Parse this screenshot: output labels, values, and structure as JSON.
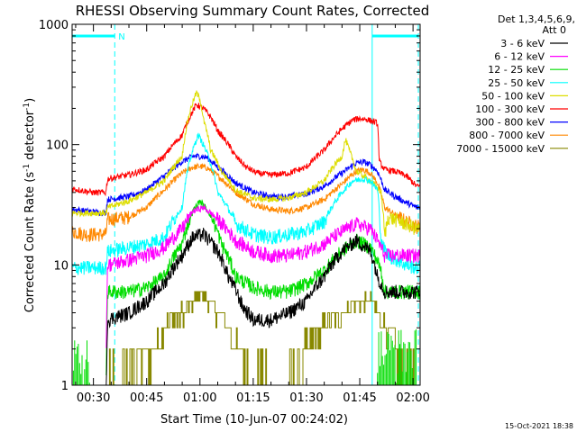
{
  "chart_data": {
    "type": "line",
    "title": "RHESSI Observing Summary Count Rates, Corrected",
    "xlabel": "Start Time (10-Jun-07 00:24:02)",
    "ylabel": "Corrected Count Rate (s⁻¹ detector⁻¹)",
    "ylabel_parts": [
      "Corrected Count Rate (s",
      "-1",
      " detector",
      "-1",
      ")"
    ],
    "y_scale": "log",
    "ylim": [
      1,
      1000
    ],
    "xlim": [
      24.0,
      122.0
    ],
    "x_units": "minutes after 00:00 UT",
    "x_ticks": [
      {
        "value": 30,
        "label": "00:30"
      },
      {
        "value": 45,
        "label": "00:45"
      },
      {
        "value": 60,
        "label": "01:00"
      },
      {
        "value": 75,
        "label": "01:15"
      },
      {
        "value": 90,
        "label": "01:30"
      },
      {
        "value": 105,
        "label": "01:45"
      },
      {
        "value": 120,
        "label": "02:00"
      }
    ],
    "y_ticks": [
      {
        "value": 1,
        "label": "1"
      },
      {
        "value": 10,
        "label": "10"
      },
      {
        "value": 100,
        "label": "100"
      },
      {
        "value": 1000,
        "label": "1000"
      }
    ],
    "legend_header": [
      "Det 1,3,4,5,6,9,",
      "Att 0"
    ],
    "legend_position": "right, outside plot",
    "series": [
      {
        "name": "3 - 6 keV",
        "color": "#000000",
        "x": [
          24,
          33.5,
          34,
          40,
          45,
          50,
          55,
          58,
          61,
          65,
          68,
          72,
          75,
          80,
          85,
          90,
          95,
          100,
          104,
          108,
          110,
          111,
          112
        ],
        "y": [
          0,
          0,
          3.5,
          4,
          5,
          7,
          12,
          17,
          18,
          13,
          8,
          4.5,
          3.5,
          3.5,
          4,
          5,
          8,
          13,
          16,
          13,
          8,
          7,
          6
        ]
      },
      {
        "name": "6 - 12 keV",
        "color": "#ff00ff",
        "x": [
          24,
          33.5,
          34,
          40,
          45,
          50,
          55,
          58,
          61,
          65,
          70,
          75,
          80,
          85,
          90,
          95,
          100,
          104,
          108,
          111,
          112
        ],
        "y": [
          0,
          0,
          10,
          11,
          12,
          14,
          20,
          28,
          30,
          24,
          16,
          13,
          12,
          12,
          13,
          15,
          19,
          22,
          20,
          14,
          12
        ]
      },
      {
        "name": "12 - 25 keV",
        "color": "#00dd00",
        "x": [
          24,
          33.5,
          34,
          40,
          45,
          50,
          55,
          58,
          60,
          63,
          66,
          70,
          75,
          80,
          85,
          90,
          95,
          100,
          104,
          108,
          111,
          112
        ],
        "y": [
          0,
          0,
          6,
          6,
          6.5,
          8,
          15,
          28,
          34,
          26,
          15,
          8,
          6.5,
          6,
          6,
          7,
          9,
          13,
          16,
          14,
          9,
          6
        ]
      },
      {
        "name": "25 - 50 keV",
        "color": "#00ffff",
        "x": [
          24,
          33.5,
          34,
          40,
          45,
          50,
          55,
          58,
          59.5,
          62,
          65,
          70,
          75,
          80,
          85,
          90,
          95,
          100,
          103,
          106,
          108,
          110,
          111,
          113,
          118,
          121
        ],
        "y": [
          9.5,
          9.5,
          13,
          14,
          15,
          17,
          30,
          90,
          120,
          85,
          40,
          22,
          18,
          17,
          18,
          19,
          23,
          40,
          50,
          52,
          50,
          42,
          15,
          12,
          10,
          9.5
        ]
      },
      {
        "name": "50 - 100 keV",
        "color": "#dddd00",
        "x": [
          24,
          33.5,
          34,
          40,
          45,
          50,
          55,
          57,
          59,
          60,
          61,
          63,
          66,
          70,
          75,
          80,
          85,
          90,
          95,
          100,
          101,
          102,
          104,
          108,
          111,
          112,
          113,
          118,
          121
        ],
        "y": [
          27,
          27,
          30,
          34,
          40,
          50,
          80,
          180,
          270,
          240,
          160,
          90,
          60,
          42,
          36,
          35,
          36,
          40,
          50,
          80,
          110,
          90,
          60,
          50,
          40,
          17,
          25,
          22,
          20
        ]
      },
      {
        "name": "100 - 300 keV",
        "color": "#ff0000",
        "x": [
          24,
          28,
          30,
          33.5,
          34,
          40,
          45,
          50,
          55,
          58,
          59,
          61,
          63,
          65,
          68,
          70,
          73,
          76,
          80,
          85,
          90,
          95,
          100,
          103,
          105,
          107,
          109,
          110,
          110.5,
          112,
          115,
          118,
          121
        ],
        "y": [
          43,
          41,
          40,
          40,
          52,
          56,
          62,
          80,
          120,
          190,
          215,
          200,
          170,
          130,
          100,
          80,
          65,
          58,
          56,
          58,
          65,
          90,
          135,
          160,
          165,
          162,
          155,
          150,
          72,
          62,
          60,
          55,
          45
        ]
      },
      {
        "name": "300 - 800 keV",
        "color": "#0000ff",
        "x": [
          24,
          28,
          33.5,
          34,
          40,
          45,
          50,
          55,
          58,
          60,
          62,
          65,
          70,
          75,
          80,
          85,
          90,
          95,
          100,
          104,
          106,
          108,
          110,
          112,
          115,
          118,
          121
        ],
        "y": [
          29,
          28,
          27,
          35,
          37,
          42,
          55,
          72,
          80,
          80,
          78,
          65,
          48,
          40,
          37,
          37,
          39,
          45,
          58,
          70,
          72,
          68,
          60,
          42,
          37,
          33,
          30
        ]
      },
      {
        "name": "800 - 7000 keV",
        "color": "#ff8800",
        "x": [
          24,
          28,
          33.5,
          34,
          40,
          45,
          50,
          55,
          58,
          60,
          62,
          65,
          70,
          75,
          80,
          85,
          90,
          95,
          100,
          104,
          106,
          108,
          110,
          112,
          115,
          118,
          121
        ],
        "y": [
          19,
          18,
          18,
          24,
          25,
          30,
          42,
          58,
          65,
          66,
          64,
          55,
          40,
          32,
          29,
          28,
          30,
          35,
          47,
          60,
          62,
          58,
          48,
          30,
          26,
          23,
          21
        ]
      },
      {
        "name": "7000 - 15000 keV",
        "color": "#888800",
        "x": [
          24,
          33.5,
          34,
          38,
          40,
          45,
          48,
          50,
          55,
          58,
          60,
          62,
          65,
          68,
          70,
          72,
          74,
          75,
          80,
          85,
          88,
          90,
          95,
          100,
          105,
          108,
          110,
          112,
          115,
          118,
          121
        ],
        "y": [
          0,
          0,
          1,
          1,
          1.5,
          2,
          2,
          3,
          4,
          5,
          6,
          5,
          4,
          3,
          2,
          2,
          1,
          1,
          1,
          1,
          1.5,
          2,
          3,
          4,
          5,
          5,
          4,
          3,
          2,
          1,
          1
        ]
      }
    ],
    "vertical_lines": [
      {
        "x": 24.0,
        "style": "solid",
        "color": "#00ffff"
      },
      {
        "x": 36.0,
        "style": "dashed",
        "color": "#00ffff"
      },
      {
        "x": 108.5,
        "style": "solid",
        "color": "#00ffff"
      },
      {
        "x": 121.5,
        "style": "dashed",
        "color": "#00ffff"
      }
    ],
    "attenuator_bars": [
      {
        "x_start": 24.0,
        "x_end": 36.0,
        "y": 800,
        "label": "N"
      },
      {
        "x_start": 108.5,
        "x_end": 121.5,
        "y": 800,
        "label": ""
      }
    ],
    "noise_regions": [
      {
        "series": "12 - 25 keV",
        "x_start": 24.0,
        "x_end": 29.0,
        "y_low": 1,
        "y_high": 2.5
      },
      {
        "series": "12 - 25 keV",
        "x_start": 110.0,
        "x_end": 121.0,
        "y_low": 1,
        "y_high": 3
      }
    ],
    "grid": false
  },
  "footer": {
    "timestamp": "15-Oct-2021 18:38"
  }
}
